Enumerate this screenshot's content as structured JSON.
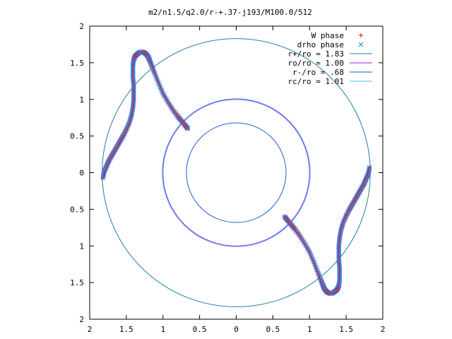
{
  "chart_data": {
    "type": "scatter",
    "title": "m2/n1.5/q2.0/r-+.37-j193/M100.0/512",
    "xlabel": "",
    "ylabel": "",
    "xlim": [
      -2,
      2
    ],
    "ylim": [
      -2,
      2
    ],
    "grid": false,
    "legend_position": "top-right",
    "x_tick_labels": [
      "2",
      "1.5",
      "1",
      "0.5",
      "0",
      "0.5",
      "1",
      "1.5",
      "2"
    ],
    "y_tick_labels": [
      "2",
      "1.5",
      "1",
      "0.5",
      "0",
      "0.5",
      "1",
      "1.5",
      "2"
    ],
    "x_tick_values": [
      -2,
      -1.5,
      -1,
      -0.5,
      0,
      0.5,
      1,
      1.5,
      2
    ],
    "y_tick_values": [
      2,
      1.5,
      1,
      0.5,
      0,
      -0.5,
      -1,
      -1.5,
      -2
    ],
    "circles": [
      {
        "name": "r+/ro = 1.83",
        "radius": 1.83,
        "color": "#1f7fa8"
      },
      {
        "name": "ro/ro = 1.00",
        "radius": 1.0,
        "color": "#a020f0"
      },
      {
        "name": "r-/ro = .68",
        "radius": 0.68,
        "color": "#1f5fc8"
      },
      {
        "name": "rc/ro = 1.01",
        "radius": 1.01,
        "color": "#40c0e8"
      }
    ],
    "phase_series": [
      {
        "name": "W phase",
        "marker": "plus",
        "color": "#ff0000"
      },
      {
        "name": "drho phase",
        "marker": "cross",
        "color": "#1e90ff"
      }
    ],
    "spiral_arm": {
      "points": [
        [
          1.82,
          0.07
        ],
        [
          1.8,
          -0.02
        ],
        [
          1.77,
          -0.09
        ],
        [
          1.74,
          -0.16
        ],
        [
          1.7,
          -0.23
        ],
        [
          1.66,
          -0.3
        ],
        [
          1.62,
          -0.37
        ],
        [
          1.58,
          -0.44
        ],
        [
          1.54,
          -0.51
        ],
        [
          1.5,
          -0.59
        ],
        [
          1.46,
          -0.68
        ],
        [
          1.43,
          -0.78
        ],
        [
          1.41,
          -0.89
        ],
        [
          1.4,
          -1.0
        ],
        [
          1.4,
          -1.1
        ],
        [
          1.4,
          -1.2
        ],
        [
          1.41,
          -1.3
        ],
        [
          1.41,
          -1.39
        ],
        [
          1.41,
          -1.47
        ],
        [
          1.4,
          -1.54
        ],
        [
          1.38,
          -1.59
        ],
        [
          1.35,
          -1.62
        ],
        [
          1.32,
          -1.64
        ],
        [
          1.29,
          -1.65
        ],
        [
          1.26,
          -1.64
        ],
        [
          1.23,
          -1.62
        ],
        [
          1.2,
          -1.58
        ],
        [
          1.18,
          -1.53
        ],
        [
          1.15,
          -1.45
        ],
        [
          1.11,
          -1.35
        ],
        [
          1.06,
          -1.22
        ],
        [
          1.0,
          -1.08
        ],
        [
          0.93,
          -0.96
        ],
        [
          0.86,
          -0.85
        ],
        [
          0.8,
          -0.77
        ],
        [
          0.75,
          -0.71
        ],
        [
          0.7,
          -0.65
        ],
        [
          0.66,
          -0.6
        ]
      ]
    },
    "spiral_rotations_deg": [
      0,
      180
    ]
  }
}
